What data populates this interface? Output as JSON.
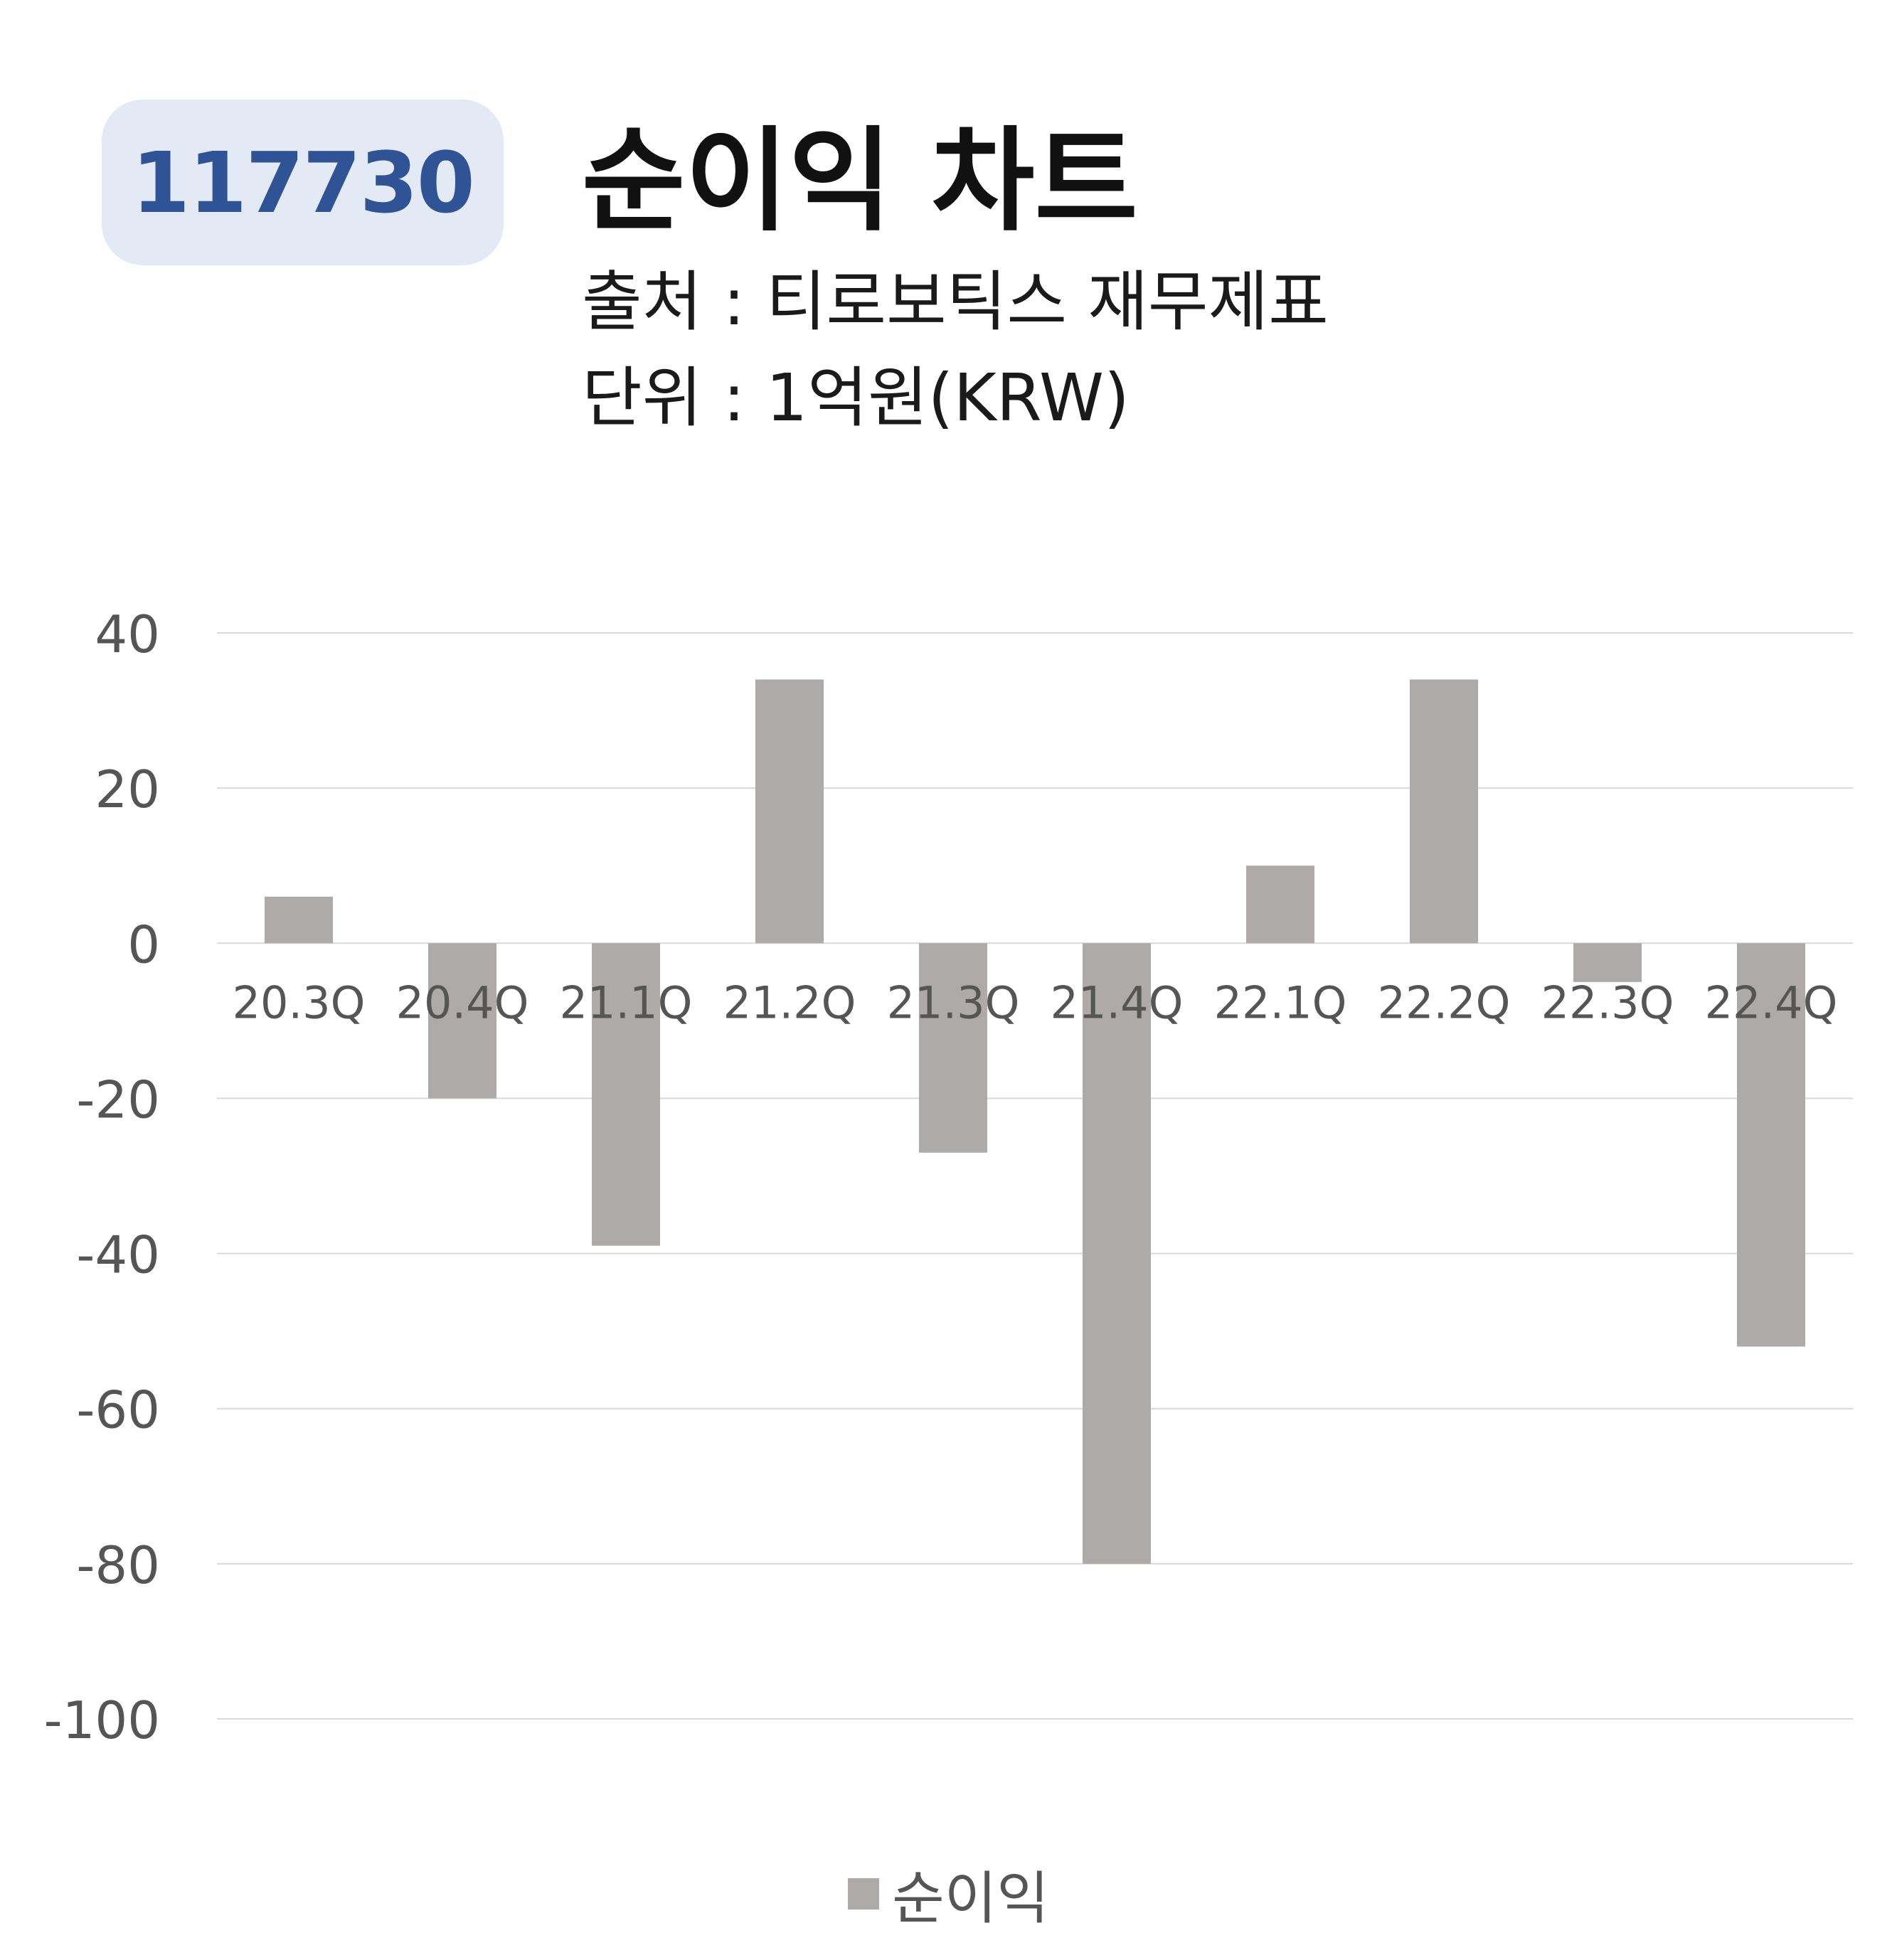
{
  "header": {
    "code": "117730",
    "title": "순이익 차트",
    "source": "출처 : 티로보틱스 재무제표",
    "unit": "단위 : 1억원(KRW)"
  },
  "chart_data": {
    "type": "bar",
    "categories": [
      "20.3Q",
      "20.4Q",
      "21.1Q",
      "21.2Q",
      "21.3Q",
      "21.4Q",
      "22.1Q",
      "22.2Q",
      "22.3Q",
      "22.4Q"
    ],
    "series": [
      {
        "name": "순이익",
        "values": [
          6,
          -20,
          -39,
          34,
          -27,
          -80,
          10,
          34,
          -5,
          -52
        ],
        "color": "#aeaaa9"
      }
    ],
    "yticks": [
      40,
      20,
      0,
      -20,
      -40,
      -60,
      -80,
      -100
    ],
    "ylim": [
      -100,
      40
    ],
    "grid": true,
    "legend_position": "bottom"
  },
  "colors": {
    "badge_bg": "#e3e9f5",
    "badge_text": "#2f5394",
    "bar": "#aeaaa9",
    "grid": "#d9d9d9",
    "axis_text": "#555555"
  }
}
